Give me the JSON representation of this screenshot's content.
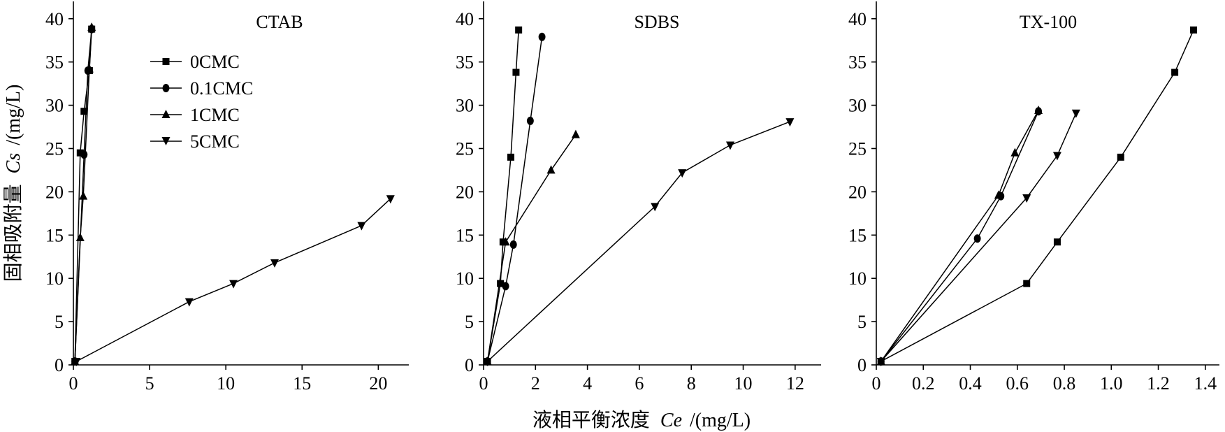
{
  "chart_data": {
    "type": "line",
    "ylabel_main": "固相吸附量",
    "ylabel_var": "Cs",
    "ylabel_unit": "/(mg/L)",
    "xlabel_main": "液相平衡浓度",
    "xlabel_var": "Ce",
    "xlabel_unit": "/(mg/L)",
    "legend": {
      "placement": "upper-left of first panel",
      "entries": [
        {
          "label": "0CMC",
          "marker": "square"
        },
        {
          "label": "0.1CMC",
          "marker": "circle"
        },
        {
          "label": "1CMC",
          "marker": "triangle-up"
        },
        {
          "label": "5CMC",
          "marker": "triangle-down"
        }
      ]
    },
    "panels": [
      {
        "title": "CTAB",
        "xlim": [
          0,
          22
        ],
        "xticks": [
          0,
          5,
          10,
          15,
          20
        ],
        "xtick_labels": [
          "0",
          "5",
          "10",
          "15",
          "20"
        ],
        "ylim": [
          0,
          42
        ],
        "yticks": [
          0,
          5,
          10,
          15,
          20,
          25,
          30,
          35,
          40
        ],
        "ytick_labels": [
          "0",
          "5",
          "10",
          "15",
          "20",
          "25",
          "30",
          "35",
          "40"
        ],
        "series": [
          {
            "marker": "square",
            "points": [
              [
                0.1,
                0.4
              ],
              [
                0.45,
                24.5
              ],
              [
                0.7,
                29.3
              ],
              [
                1.05,
                34.0
              ],
              [
                1.2,
                38.8
              ]
            ]
          },
          {
            "marker": "circle",
            "points": [
              [
                0.1,
                0.4
              ],
              [
                0.7,
                24.3
              ],
              [
                0.95,
                34.0
              ],
              [
                1.2,
                38.8
              ]
            ]
          },
          {
            "marker": "triangle-up",
            "points": [
              [
                0.1,
                0.4
              ],
              [
                0.45,
                14.7
              ],
              [
                0.65,
                19.5
              ],
              [
                1.05,
                34.2
              ],
              [
                1.2,
                39.0
              ]
            ]
          },
          {
            "marker": "triangle-down",
            "points": [
              [
                0.2,
                0.4
              ],
              [
                7.6,
                7.3
              ],
              [
                10.5,
                9.4
              ],
              [
                13.2,
                11.8
              ],
              [
                18.9,
                16.1
              ],
              [
                20.8,
                19.2
              ]
            ]
          }
        ]
      },
      {
        "title": "SDBS",
        "xlim": [
          0,
          13
        ],
        "xticks": [
          0,
          2,
          4,
          6,
          8,
          10,
          12
        ],
        "xtick_labels": [
          "0",
          "2",
          "4",
          "6",
          "8",
          "10",
          "12"
        ],
        "ylim": [
          0,
          42
        ],
        "yticks": [
          0,
          5,
          10,
          15,
          20,
          25,
          30,
          35,
          40
        ],
        "ytick_labels": [
          "0",
          "5",
          "10",
          "15",
          "20",
          "25",
          "30",
          "35",
          "40"
        ],
        "series": [
          {
            "marker": "square",
            "points": [
              [
                0.15,
                0.4
              ],
              [
                0.65,
                9.4
              ],
              [
                0.75,
                14.2
              ],
              [
                1.05,
                24.0
              ],
              [
                1.25,
                33.8
              ],
              [
                1.35,
                38.7
              ]
            ]
          },
          {
            "marker": "circle",
            "points": [
              [
                0.15,
                0.4
              ],
              [
                0.85,
                9.1
              ],
              [
                1.15,
                13.9
              ],
              [
                1.8,
                28.2
              ],
              [
                2.25,
                37.9
              ]
            ]
          },
          {
            "marker": "triangle-up",
            "points": [
              [
                0.15,
                0.4
              ],
              [
                0.85,
                14.2
              ],
              [
                2.6,
                22.5
              ],
              [
                3.55,
                26.6
              ]
            ]
          },
          {
            "marker": "triangle-down",
            "points": [
              [
                0.15,
                0.4
              ],
              [
                6.6,
                18.3
              ],
              [
                7.65,
                22.2
              ],
              [
                9.5,
                25.4
              ],
              [
                11.8,
                28.1
              ]
            ]
          }
        ]
      },
      {
        "title": "TX-100",
        "xlim": [
          0,
          1.46
        ],
        "xticks": [
          0,
          0.2,
          0.4,
          0.6,
          0.8,
          1.0,
          1.2,
          1.4
        ],
        "xtick_labels": [
          "0",
          "0.2",
          "0.4",
          "0.6",
          "0.8",
          "1.0",
          "1.2",
          "1.4"
        ],
        "ylim": [
          0,
          42
        ],
        "yticks": [
          0,
          5,
          10,
          15,
          20,
          25,
          30,
          35,
          40
        ],
        "ytick_labels": [
          "0",
          "5",
          "10",
          "15",
          "20",
          "25",
          "30",
          "35",
          "40"
        ],
        "series": [
          {
            "marker": "square",
            "points": [
              [
                0.02,
                0.4
              ],
              [
                0.64,
                9.4
              ],
              [
                0.77,
                14.2
              ],
              [
                1.04,
                24.0
              ],
              [
                1.27,
                33.8
              ],
              [
                1.35,
                38.7
              ]
            ]
          },
          {
            "marker": "circle",
            "points": [
              [
                0.02,
                0.4
              ],
              [
                0.43,
                14.6
              ],
              [
                0.53,
                19.5
              ],
              [
                0.69,
                29.3
              ]
            ]
          },
          {
            "marker": "triangle-up",
            "points": [
              [
                0.02,
                0.4
              ],
              [
                0.52,
                19.6
              ],
              [
                0.59,
                24.5
              ],
              [
                0.69,
                29.4
              ]
            ]
          },
          {
            "marker": "triangle-down",
            "points": [
              [
                0.02,
                0.4
              ],
              [
                0.64,
                19.3
              ],
              [
                0.77,
                24.2
              ],
              [
                0.85,
                29.1
              ]
            ]
          }
        ]
      }
    ]
  }
}
